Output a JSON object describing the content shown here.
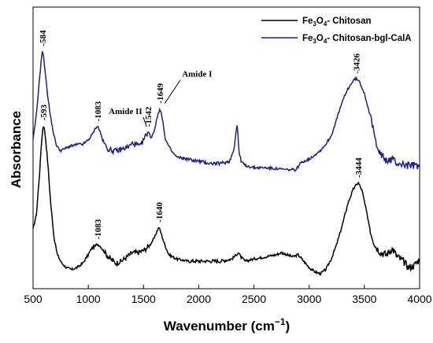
{
  "chart_data": {
    "type": "line",
    "xlabel_main": "Wavenumber (cm",
    "xlabel_sup": "−1",
    "xlabel_close": ")",
    "ylabel": "Absorbance",
    "xlim": [
      500,
      4000
    ],
    "x_ticks": [
      "500",
      "1000",
      "1500",
      "2000",
      "2500",
      "3000",
      "3500",
      "4000"
    ],
    "legend_position": "top-right",
    "series": [
      {
        "name_main": "Fe",
        "name_sub": "3",
        "name_mid": "O",
        "name_sub2": "4",
        "name_rest": "- Chitosan",
        "color": "#000000",
        "x": [
          500,
          530,
          560,
          575,
          590,
          593,
          600,
          615,
          635,
          660,
          690,
          720,
          760,
          800,
          850,
          900,
          950,
          1000,
          1030,
          1060,
          1083,
          1110,
          1150,
          1200,
          1250,
          1300,
          1350,
          1400,
          1450,
          1500,
          1550,
          1600,
          1620,
          1640,
          1660,
          1690,
          1730,
          1800,
          1900,
          2000,
          2100,
          2200,
          2300,
          2340,
          2360,
          2380,
          2420,
          2500,
          2600,
          2700,
          2750,
          2800,
          2850,
          2900,
          2950,
          3000,
          3050,
          3100,
          3150,
          3200,
          3250,
          3300,
          3350,
          3400,
          3444,
          3480,
          3520,
          3560,
          3600,
          3650,
          3700,
          3750,
          3800,
          3850,
          3900,
          3950,
          4000
        ],
        "y": [
          0.18,
          0.25,
          0.45,
          0.58,
          0.66,
          0.67,
          0.66,
          0.6,
          0.48,
          0.3,
          0.14,
          0.06,
          0.02,
          0.0,
          -0.01,
          0.0,
          0.02,
          0.06,
          0.09,
          0.1,
          0.11,
          0.1,
          0.07,
          0.04,
          0.02,
          0.03,
          0.05,
          0.07,
          0.07,
          0.08,
          0.1,
          0.14,
          0.17,
          0.19,
          0.16,
          0.11,
          0.06,
          0.04,
          0.03,
          0.03,
          0.03,
          0.03,
          0.04,
          0.06,
          0.07,
          0.05,
          0.03,
          0.04,
          0.05,
          0.06,
          0.07,
          0.06,
          0.05,
          0.06,
          0.03,
          0.0,
          -0.02,
          -0.03,
          -0.01,
          0.04,
          0.11,
          0.2,
          0.3,
          0.37,
          0.4,
          0.36,
          0.26,
          0.16,
          0.1,
          0.07,
          0.06,
          0.09,
          0.05,
          0.03,
          0.0,
          0.01,
          0.04
        ]
      },
      {
        "name_main": "Fe",
        "name_sub": "3",
        "name_mid": "O",
        "name_sub2": "4",
        "name_rest": "- Chitosan-bgl-CalA",
        "color": "#1f1f8a",
        "x": [
          500,
          530,
          560,
          575,
          584,
          595,
          610,
          630,
          655,
          685,
          715,
          750,
          790,
          830,
          870,
          910,
          950,
          1000,
          1040,
          1070,
          1083,
          1100,
          1130,
          1170,
          1220,
          1270,
          1320,
          1370,
          1400,
          1430,
          1470,
          1510,
          1542,
          1570,
          1600,
          1625,
          1649,
          1670,
          1700,
          1750,
          1800,
          1900,
          2000,
          2100,
          2200,
          2280,
          2320,
          2340,
          2350,
          2365,
          2385,
          2420,
          2500,
          2600,
          2700,
          2800,
          2880,
          2920,
          2950,
          3000,
          3050,
          3100,
          3150,
          3200,
          3250,
          3300,
          3350,
          3400,
          3426,
          3460,
          3500,
          3550,
          3600,
          3650,
          3700,
          3750,
          3800,
          3850,
          3900,
          3950,
          4000
        ],
        "y": [
          0.6,
          0.72,
          0.9,
          0.98,
          1.02,
          0.99,
          0.92,
          0.82,
          0.72,
          0.63,
          0.57,
          0.55,
          0.56,
          0.57,
          0.575,
          0.58,
          0.58,
          0.6,
          0.63,
          0.66,
          0.665,
          0.65,
          0.6,
          0.56,
          0.55,
          0.55,
          0.56,
          0.57,
          0.585,
          0.58,
          0.57,
          0.61,
          0.64,
          0.61,
          0.65,
          0.71,
          0.75,
          0.7,
          0.6,
          0.55,
          0.52,
          0.51,
          0.5,
          0.49,
          0.49,
          0.5,
          0.56,
          0.65,
          0.67,
          0.54,
          0.5,
          0.48,
          0.47,
          0.47,
          0.465,
          0.46,
          0.46,
          0.49,
          0.5,
          0.51,
          0.53,
          0.55,
          0.58,
          0.62,
          0.7,
          0.78,
          0.84,
          0.88,
          0.89,
          0.87,
          0.82,
          0.72,
          0.6,
          0.53,
          0.5,
          0.51,
          0.49,
          0.485,
          0.48,
          0.48,
          0.48
        ]
      }
    ],
    "peak_labels": [
      {
        "text": "584",
        "x": 584,
        "series": 1
      },
      {
        "text": "593",
        "x": 593,
        "series": 0
      },
      {
        "text": "1083",
        "x": 1083,
        "series": 1
      },
      {
        "text": "1083",
        "x": 1083,
        "series": 0
      },
      {
        "text": "1542",
        "x": 1542,
        "series": 1
      },
      {
        "text": "1649",
        "x": 1649,
        "series": 1
      },
      {
        "text": "1640",
        "x": 1640,
        "series": 0
      },
      {
        "text": "3426",
        "x": 3426,
        "series": 1
      },
      {
        "text": "3444",
        "x": 3444,
        "series": 0
      }
    ],
    "annotations": [
      {
        "text": "Amide II",
        "x": 1542
      },
      {
        "text": "Amide I",
        "x": 1649
      }
    ]
  }
}
